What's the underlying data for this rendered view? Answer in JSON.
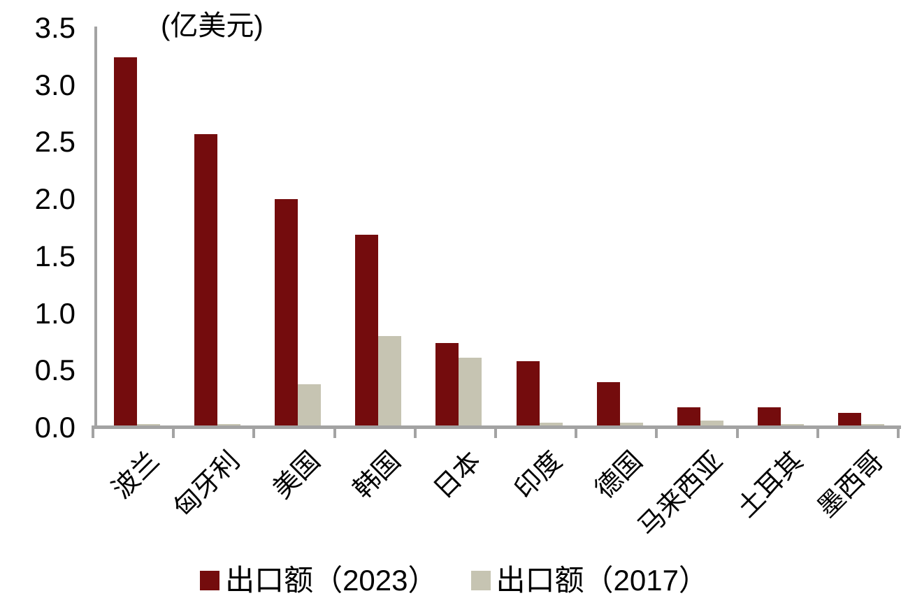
{
  "chart_data": {
    "type": "bar",
    "unit": "(亿美元)",
    "categories": [
      "波兰",
      "匈牙利",
      "美国",
      "韩国",
      "日本",
      "印度",
      "德国",
      "马来西亚",
      "土耳其",
      "墨西哥"
    ],
    "series": [
      {
        "name": "出口额（2023）",
        "color": "#740c0d",
        "values": [
          3.24,
          2.57,
          2.0,
          1.69,
          0.74,
          0.58,
          0.4,
          0.18,
          0.18,
          0.13
        ]
      },
      {
        "name": "出口额（2017）",
        "color": "#c6c4b2",
        "values": [
          0.03,
          0.03,
          0.38,
          0.8,
          0.61,
          0.04,
          0.04,
          0.06,
          0.03,
          0.03
        ]
      }
    ],
    "ylim": [
      0,
      3.5
    ],
    "yticks": [
      0.0,
      0.5,
      1.0,
      1.5,
      2.0,
      2.5,
      3.0,
      3.5
    ],
    "ytick_labels": [
      "0.0",
      "0.5",
      "1.0",
      "1.5",
      "2.0",
      "2.5",
      "3.0",
      "3.5"
    ],
    "grid": false,
    "legend_position": "bottom"
  },
  "colors": {
    "bar_2023": "#740c0d",
    "bar_2017": "#c6c4b2",
    "axis": "#a3a3a3",
    "text": "#000000",
    "background": "#ffffff"
  }
}
